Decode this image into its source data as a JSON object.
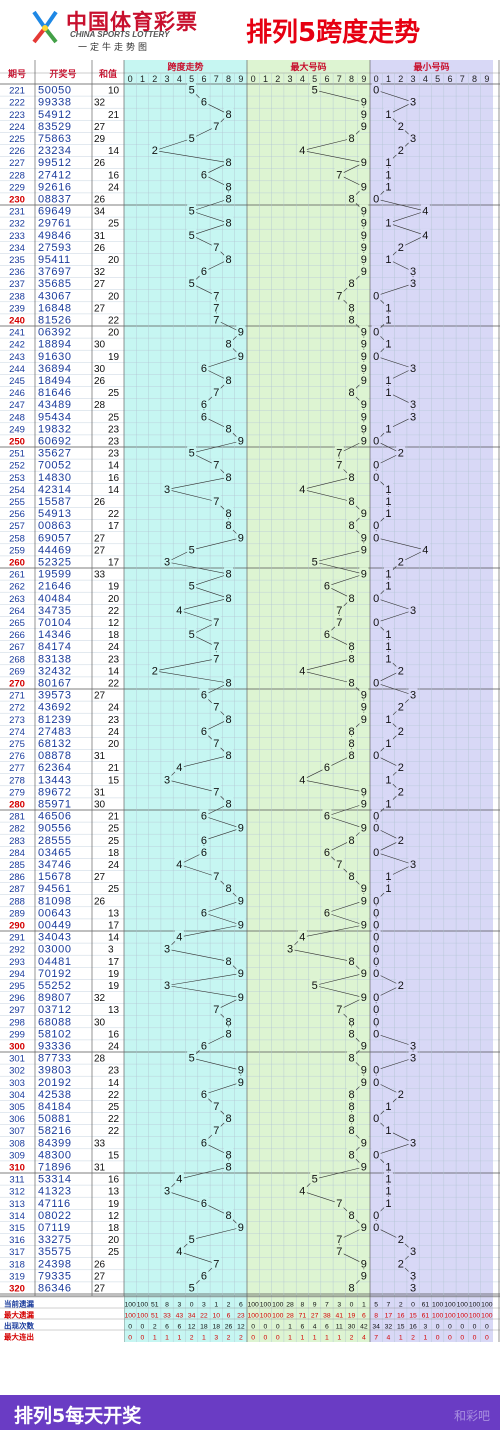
{
  "header": {
    "logo_cn": "中国体育彩票",
    "logo_en": "CHINA SPORTS LOTTERY",
    "motto": "一定牛走势图",
    "title": "排列5跨度走势"
  },
  "footer": {
    "text": "排列5每天开奖",
    "watermark": "和彩吧"
  },
  "colors": {
    "span_bg": "#c6f6f2",
    "max_bg": "#ddf4d2",
    "min_bg": "#d8d8f6",
    "title_red": "#e60012",
    "footer": "#6a3cc4"
  },
  "chart_data": {
    "type": "table",
    "headers": {
      "period": "期号",
      "number": "开奖号",
      "sum": "和值",
      "span": "跨度走势",
      "max": "最大号码",
      "min": "最小号码"
    },
    "digits": [
      "0",
      "1",
      "2",
      "3",
      "4",
      "5",
      "6",
      "7",
      "8",
      "9"
    ],
    "start_period": 221,
    "draws": [
      [
        "50050",
        10
      ],
      [
        "99338",
        32
      ],
      [
        "54912",
        21
      ],
      [
        "83529",
        27
      ],
      [
        "75863",
        29
      ],
      [
        "23234",
        14
      ],
      [
        "99512",
        26
      ],
      [
        "27412",
        16
      ],
      [
        "92616",
        24
      ],
      [
        "08837",
        26
      ],
      [
        "69649",
        34
      ],
      [
        "29761",
        25
      ],
      [
        "49846",
        31
      ],
      [
        "27593",
        26
      ],
      [
        "95411",
        20
      ],
      [
        "37697",
        32
      ],
      [
        "35685",
        27
      ],
      [
        "43067",
        20
      ],
      [
        "16848",
        27
      ],
      [
        "81526",
        22
      ],
      [
        "06392",
        20
      ],
      [
        "18894",
        30
      ],
      [
        "91630",
        19
      ],
      [
        "36894",
        30
      ],
      [
        "18494",
        26
      ],
      [
        "81646",
        25
      ],
      [
        "43489",
        28
      ],
      [
        "95434",
        25
      ],
      [
        "19832",
        23
      ],
      [
        "60692",
        23
      ],
      [
        "35627",
        23
      ],
      [
        "70052",
        14
      ],
      [
        "14830",
        16
      ],
      [
        "42314",
        14
      ],
      [
        "15587",
        26
      ],
      [
        "54913",
        22
      ],
      [
        "00863",
        17
      ],
      [
        "69057",
        27
      ],
      [
        "44469",
        27
      ],
      [
        "52325",
        17
      ],
      [
        "19599",
        33
      ],
      [
        "21646",
        19
      ],
      [
        "40484",
        20
      ],
      [
        "34735",
        22
      ],
      [
        "70104",
        12
      ],
      [
        "14346",
        18
      ],
      [
        "84174",
        24
      ],
      [
        "83138",
        23
      ],
      [
        "32432",
        14
      ],
      [
        "80167",
        22
      ],
      [
        "39573",
        27
      ],
      [
        "43692",
        24
      ],
      [
        "81239",
        23
      ],
      [
        "27483",
        24
      ],
      [
        "68132",
        20
      ],
      [
        "08878",
        31
      ],
      [
        "62364",
        21
      ],
      [
        "13443",
        15
      ],
      [
        "89672",
        31
      ],
      [
        "85971",
        30
      ],
      [
        "46506",
        21
      ],
      [
        "90556",
        25
      ],
      [
        "28555",
        25
      ],
      [
        "03465",
        18
      ],
      [
        "34746",
        24
      ],
      [
        "15678",
        27
      ],
      [
        "94561",
        25
      ],
      [
        "81098",
        26
      ],
      [
        "00643",
        13
      ],
      [
        "00449",
        17
      ],
      [
        "34043",
        14
      ],
      [
        "03000",
        3
      ],
      [
        "04481",
        17
      ],
      [
        "70192",
        19
      ],
      [
        "55252",
        19
      ],
      [
        "89807",
        32
      ],
      [
        "03712",
        13
      ],
      [
        "68088",
        30
      ],
      [
        "58102",
        16
      ],
      [
        "93336",
        24
      ],
      [
        "87733",
        28
      ],
      [
        "39803",
        23
      ],
      [
        "20192",
        14
      ],
      [
        "42538",
        22
      ],
      [
        "84184",
        25
      ],
      [
        "50881",
        22
      ],
      [
        "58216",
        22
      ],
      [
        "84399",
        33
      ],
      [
        "48300",
        15
      ],
      [
        "71896",
        31
      ],
      [
        "53314",
        16
      ],
      [
        "41323",
        13
      ],
      [
        "47116",
        19
      ],
      [
        "08022",
        12
      ],
      [
        "07119",
        18
      ],
      [
        "33275",
        20
      ],
      [
        "35575",
        25
      ],
      [
        "24398",
        26
      ],
      [
        "79335",
        27
      ],
      [
        "86346",
        27
      ]
    ],
    "stats": {
      "labels": [
        "当前遗漏",
        "最大遗漏",
        "出现次数",
        "最大连出"
      ],
      "span": [
        [
          "100",
          "100",
          "51",
          "8",
          "3",
          "0",
          "3",
          "1",
          "2",
          "6"
        ],
        [
          "100",
          "100",
          "51",
          "33",
          "43",
          "34",
          "22",
          "10",
          "6",
          "23"
        ],
        [
          "0",
          "0",
          "2",
          "6",
          "6",
          "12",
          "18",
          "18",
          "26",
          "12"
        ],
        [
          "0",
          "0",
          "1",
          "1",
          "1",
          "2",
          "1",
          "3",
          "2",
          "2"
        ]
      ],
      "max": [
        [
          "100",
          "100",
          "100",
          "28",
          "8",
          "9",
          "7",
          "3",
          "0",
          "1"
        ],
        [
          "100",
          "100",
          "100",
          "28",
          "71",
          "27",
          "38",
          "41",
          "19",
          "6"
        ],
        [
          "0",
          "0",
          "0",
          "1",
          "6",
          "4",
          "6",
          "11",
          "30",
          "42"
        ],
        [
          "0",
          "0",
          "0",
          "1",
          "1",
          "1",
          "1",
          "1",
          "2",
          "4"
        ]
      ],
      "min": [
        [
          "5",
          "7",
          "2",
          "0",
          "61",
          "100",
          "100",
          "100",
          "100",
          "100"
        ],
        [
          "8",
          "17",
          "16",
          "15",
          "61",
          "100",
          "100",
          "100",
          "100",
          "100"
        ],
        [
          "34",
          "32",
          "15",
          "16",
          "3",
          "0",
          "0",
          "0",
          "0",
          "0"
        ],
        [
          "7",
          "4",
          "1",
          "2",
          "1",
          "0",
          "0",
          "0",
          "0",
          "0"
        ]
      ]
    }
  }
}
